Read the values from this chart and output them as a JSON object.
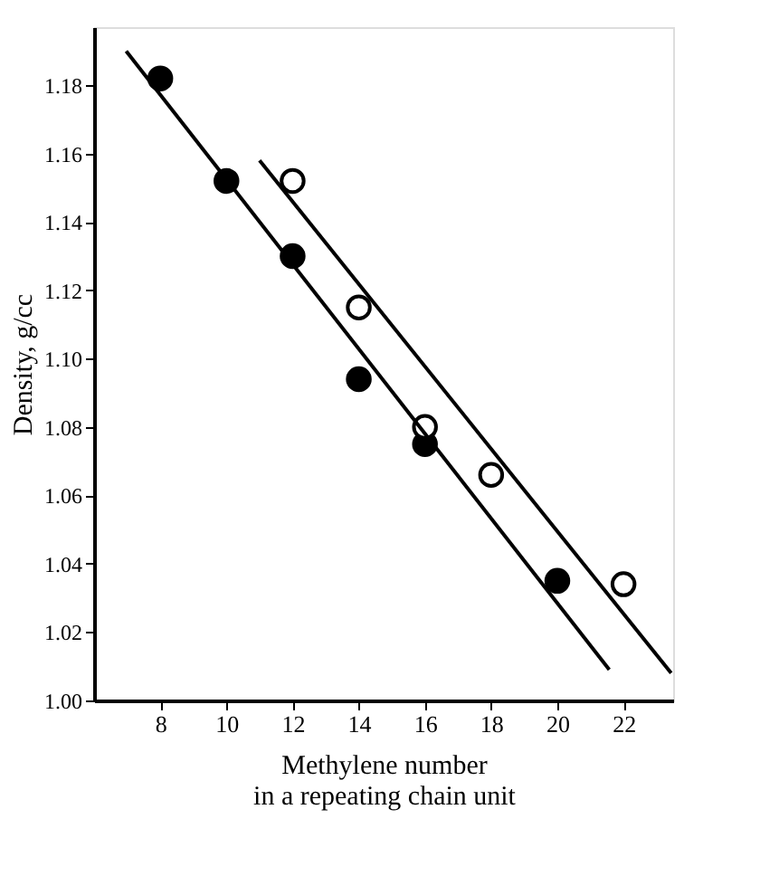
{
  "chart_data": {
    "type": "scatter",
    "xlabel": "Methylene number\nin a repeating chain unit",
    "ylabel": "Density, g/cc",
    "xlim": [
      6,
      23.5
    ],
    "ylim": [
      1.0,
      1.197
    ],
    "xticks": [
      8,
      10,
      12,
      14,
      16,
      18,
      20,
      22
    ],
    "yticks": [
      {
        "value": 1.0,
        "label": "1.00"
      },
      1.02,
      1.04,
      1.06,
      1.08,
      {
        "value": 1.1,
        "label": "1.10"
      },
      1.12,
      1.14,
      1.16,
      1.18
    ],
    "grid": false,
    "series": [
      {
        "color": "#000000",
        "marker": "circle",
        "x": [
          8,
          10,
          12,
          14,
          16,
          20
        ],
        "values": [
          1.182,
          1.152,
          1.13,
          1.094,
          1.075,
          1.035
        ]
      },
      {
        "color": "#ffffff",
        "marker": "circle",
        "x": [
          12,
          14,
          16,
          18,
          22
        ],
        "values": [
          1.152,
          1.115,
          1.08,
          1.066,
          1.034
        ]
      },
      {
        "type": "line",
        "color": "#000000",
        "marker": "none",
        "line_style": "solid",
        "x": [
          6.97,
          21.57
        ],
        "values": [
          1.19,
          1.009
        ]
      },
      {
        "type": "line",
        "color": "#000000",
        "marker": "none",
        "line_style": "solid",
        "x": [
          11.0,
          23.44
        ],
        "values": [
          1.158,
          1.008
        ]
      }
    ]
  }
}
